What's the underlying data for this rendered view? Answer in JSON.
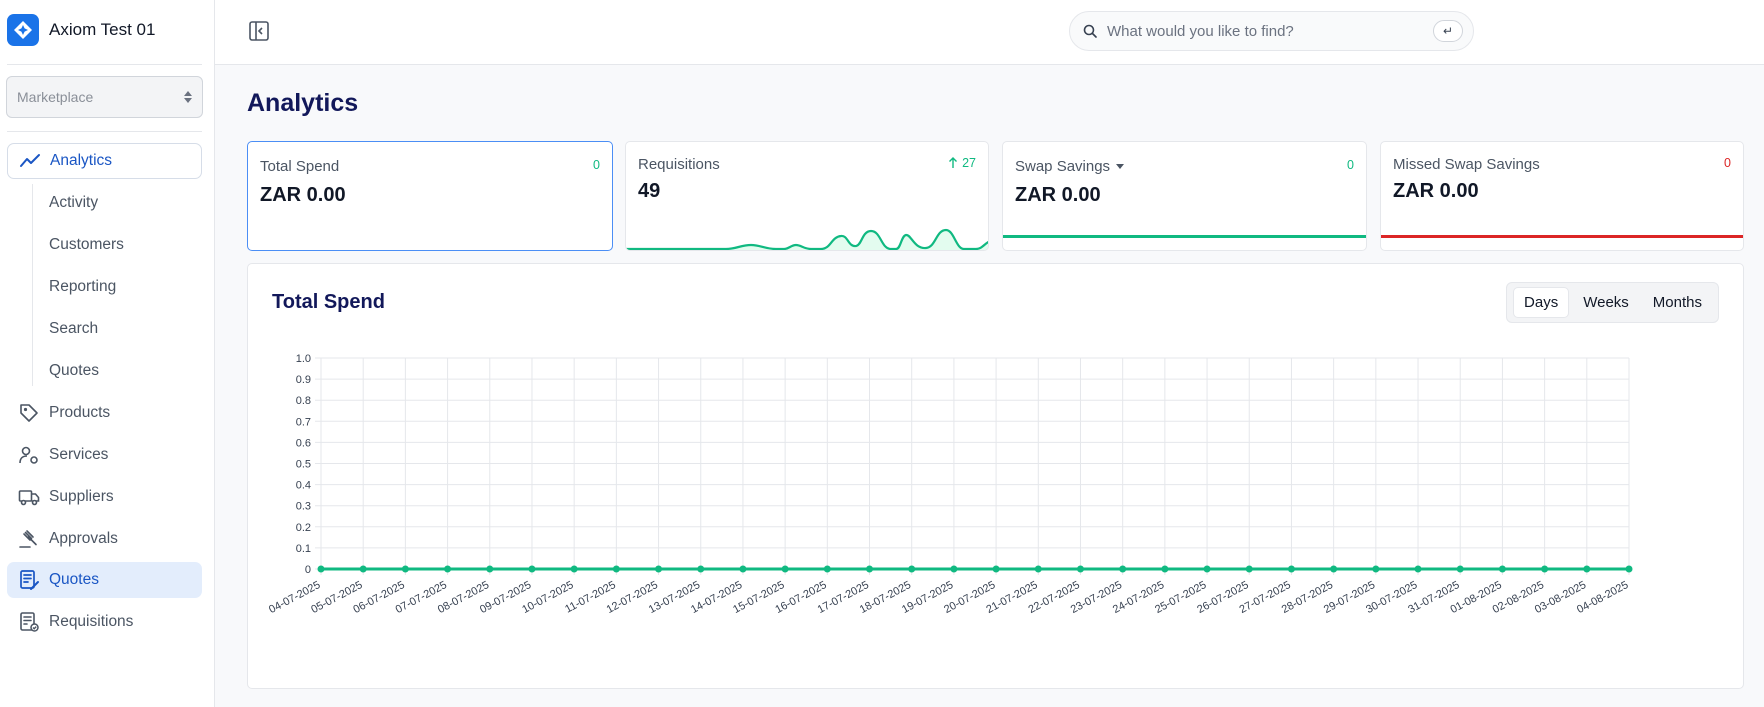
{
  "app": {
    "name": "Axiom Test 01",
    "brand_color": "#1a73e8",
    "accent": "#10b981",
    "danger": "#dc2626"
  },
  "sidebar": {
    "selector": {
      "value": "Marketplace"
    },
    "items": [
      {
        "label": "Analytics",
        "icon": "trend-line-icon"
      },
      {
        "label": "Products",
        "icon": "tag-icon"
      },
      {
        "label": "Services",
        "icon": "user-gear-icon"
      },
      {
        "label": "Suppliers",
        "icon": "truck-icon"
      },
      {
        "label": "Approvals",
        "icon": "gavel-icon"
      },
      {
        "label": "Quotes",
        "icon": "quote-document-icon"
      },
      {
        "label": "Requisitions",
        "icon": "checklist-icon"
      }
    ],
    "analytics_sub": [
      "Activity",
      "Customers",
      "Reporting",
      "Search",
      "Quotes"
    ]
  },
  "header": {
    "search_placeholder": "What would you like to find?",
    "enter_key": "↵"
  },
  "page": {
    "title": "Analytics"
  },
  "kpis": [
    {
      "label": "Total Spend",
      "value": "ZAR 0.00",
      "delta": "0"
    },
    {
      "label": "Requisitions",
      "value": "49",
      "delta": "27"
    },
    {
      "label": "Swap Savings",
      "value": "ZAR 0.00",
      "delta": "0"
    },
    {
      "label": "Missed Swap Savings",
      "value": "ZAR 0.00",
      "delta": "0"
    }
  ],
  "chart_card": {
    "title": "Total Spend",
    "ranges": [
      "Days",
      "Weeks",
      "Months"
    ],
    "selected_range": "Days"
  },
  "chart_data": {
    "type": "line",
    "title": "Total Spend",
    "xlabel": "",
    "ylabel": "",
    "ylim": [
      0,
      1.0
    ],
    "y_ticks": [
      "0",
      "0.1",
      "0.2",
      "0.3",
      "0.4",
      "0.5",
      "0.6",
      "0.7",
      "0.8",
      "0.9",
      "1.0"
    ],
    "grid": true,
    "x": [
      "04-07-2025",
      "05-07-2025",
      "06-07-2025",
      "07-07-2025",
      "08-07-2025",
      "09-07-2025",
      "10-07-2025",
      "11-07-2025",
      "12-07-2025",
      "13-07-2025",
      "14-07-2025",
      "15-07-2025",
      "16-07-2025",
      "17-07-2025",
      "18-07-2025",
      "19-07-2025",
      "20-07-2025",
      "21-07-2025",
      "22-07-2025",
      "23-07-2025",
      "24-07-2025",
      "25-07-2025",
      "26-07-2025",
      "27-07-2025",
      "28-07-2025",
      "29-07-2025",
      "30-07-2025",
      "31-07-2025",
      "01-08-2025",
      "02-08-2025",
      "03-08-2025",
      "04-08-2025"
    ],
    "series": [
      {
        "values": [
          0,
          0,
          0,
          0,
          0,
          0,
          0,
          0,
          0,
          0,
          0,
          0,
          0,
          0,
          0,
          0,
          0,
          0,
          0,
          0,
          0,
          0,
          0,
          0,
          0,
          0,
          0,
          0,
          0,
          0,
          0,
          0
        ],
        "color": "#10b981"
      }
    ]
  }
}
